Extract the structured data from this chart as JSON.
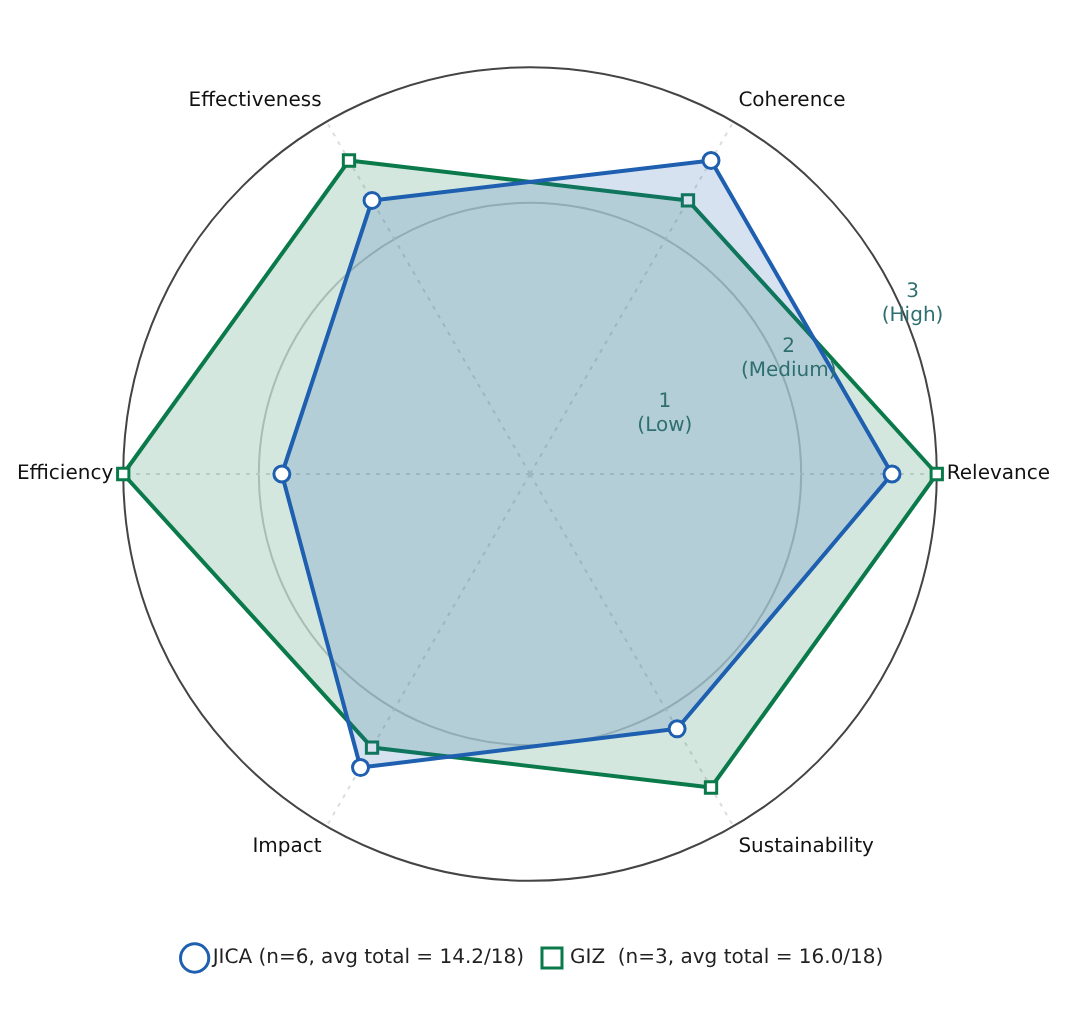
{
  "chart_data": {
    "type": "radar",
    "categories": [
      "Coherence",
      "Relevance",
      "Sustainability",
      "Impact",
      "Efficiency",
      "Effectiveness"
    ],
    "series": [
      {
        "name": "JICA (n=6, avg total = 14.2/18)",
        "color": "#1f5fb0",
        "marker": "circle",
        "values": [
          2.67,
          2.67,
          2.17,
          2.5,
          1.83,
          2.33
        ]
      },
      {
        "name": "GIZ  (n=3, avg total = 16.0/18)",
        "color": "#0b7a4b",
        "marker": "square",
        "values": [
          2.33,
          3,
          2.67,
          2.33,
          3,
          2.67
        ]
      }
    ],
    "ylim": [
      0,
      3
    ],
    "yticks": [
      {
        "value": 1,
        "label": "1 (Low)"
      },
      {
        "value": 2,
        "label": "2 (Medium)"
      },
      {
        "value": 3,
        "label": "3 (High)"
      }
    ],
    "grid": true,
    "legend": "bottom",
    "line_style": "solid"
  }
}
